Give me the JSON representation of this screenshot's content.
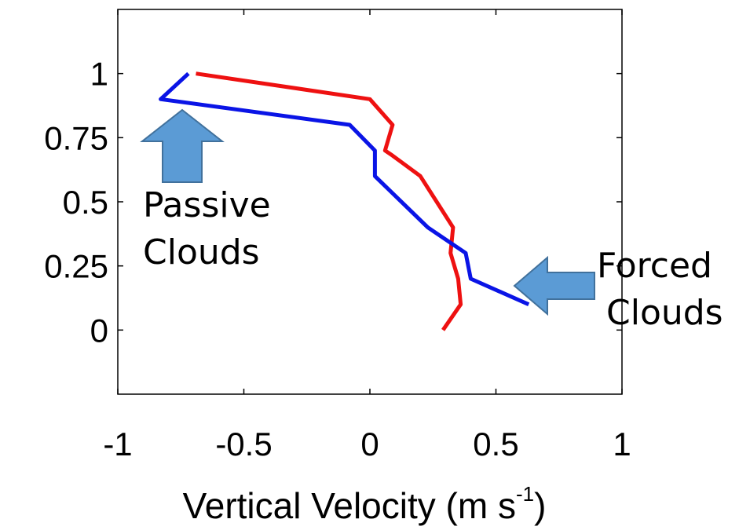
{
  "chart_data": {
    "type": "line",
    "title": "",
    "xlabel": "Vertical Velocity (m s",
    "xlabel_superscript": "-1",
    "xlabel_suffix": ")",
    "ylabel": "",
    "xlim": [
      -1,
      1
    ],
    "ylim": [
      -0.25,
      1.25
    ],
    "x_ticks": [
      -1,
      -0.5,
      0,
      0.5,
      1
    ],
    "x_tick_labels": [
      "-1",
      "-0.5",
      "0",
      "0.5",
      "1"
    ],
    "y_ticks": [
      0,
      0.25,
      0.5,
      0.75,
      1
    ],
    "y_tick_labels": [
      "0",
      "0.25",
      "0.5",
      "0.75",
      "1"
    ],
    "grid": false,
    "series": [
      {
        "color": "#ee1111",
        "points": [
          [
            0.29,
            0.0
          ],
          [
            0.36,
            0.1
          ],
          [
            0.35,
            0.2
          ],
          [
            0.32,
            0.3
          ],
          [
            0.33,
            0.4
          ],
          [
            0.2,
            0.6
          ],
          [
            0.09,
            0.68
          ],
          [
            0.06,
            0.7
          ],
          [
            0.09,
            0.8
          ],
          [
            0.0,
            0.9
          ],
          [
            -0.69,
            1.0
          ]
        ]
      },
      {
        "color": "#0a14e6",
        "points": [
          [
            0.63,
            0.1
          ],
          [
            0.4,
            0.2
          ],
          [
            0.38,
            0.3
          ],
          [
            0.23,
            0.4
          ],
          [
            0.02,
            0.6
          ],
          [
            0.02,
            0.7
          ],
          [
            -0.08,
            0.8
          ],
          [
            -0.83,
            0.9
          ],
          [
            -0.72,
            1.0
          ]
        ]
      }
    ],
    "annotations": [
      {
        "lines": [
          "Passive",
          "Clouds"
        ],
        "arrow_direction": "up",
        "color": "#5b9bd5",
        "points_to": [
          -0.71,
          0.86
        ]
      },
      {
        "lines": [
          "Forced",
          "Clouds"
        ],
        "arrow_direction": "left",
        "color": "#5b9bd5",
        "points_to": [
          0.58,
          0.16
        ]
      }
    ]
  }
}
